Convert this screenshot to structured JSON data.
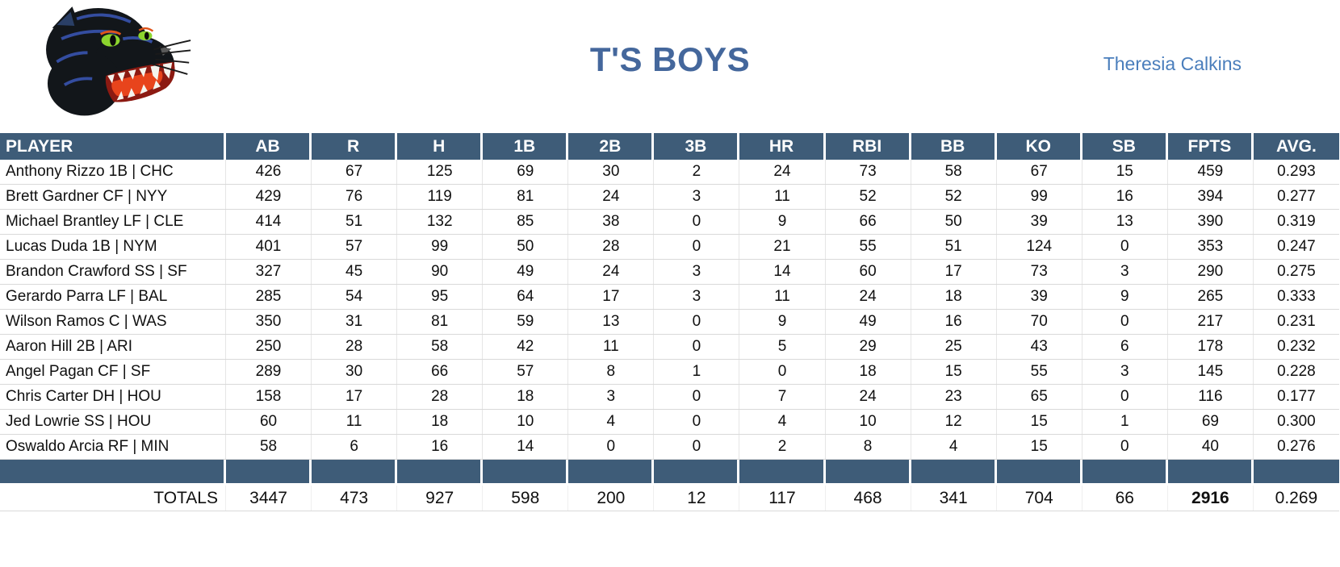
{
  "header": {
    "title": "T'S BOYS",
    "owner": "Theresia Calkins"
  },
  "colors": {
    "header_fill": "#3E5C78",
    "title_text": "#44679C",
    "owner_text": "#4A7EBC",
    "grid_line": "#D9D9D9"
  },
  "logo": {
    "name": "panther-head-logo"
  },
  "table": {
    "columns": [
      "PLAYER",
      "AB",
      "R",
      "H",
      "1B",
      "2B",
      "3B",
      "HR",
      "RBI",
      "BB",
      "KO",
      "SB",
      "FPTS",
      "AVG."
    ],
    "rows": [
      {
        "player": "Anthony Rizzo 1B | CHC",
        "stats": [
          426,
          67,
          125,
          69,
          30,
          2,
          24,
          73,
          58,
          67,
          15,
          459,
          "0.293"
        ]
      },
      {
        "player": "Brett Gardner CF | NYY",
        "stats": [
          429,
          76,
          119,
          81,
          24,
          3,
          11,
          52,
          52,
          99,
          16,
          394,
          "0.277"
        ]
      },
      {
        "player": "Michael Brantley LF | CLE",
        "stats": [
          414,
          51,
          132,
          85,
          38,
          0,
          9,
          66,
          50,
          39,
          13,
          390,
          "0.319"
        ]
      },
      {
        "player": "Lucas Duda 1B | NYM",
        "stats": [
          401,
          57,
          99,
          50,
          28,
          0,
          21,
          55,
          51,
          124,
          0,
          353,
          "0.247"
        ]
      },
      {
        "player": "Brandon Crawford SS | SF",
        "stats": [
          327,
          45,
          90,
          49,
          24,
          3,
          14,
          60,
          17,
          73,
          3,
          290,
          "0.275"
        ]
      },
      {
        "player": "Gerardo Parra LF | BAL",
        "stats": [
          285,
          54,
          95,
          64,
          17,
          3,
          11,
          24,
          18,
          39,
          9,
          265,
          "0.333"
        ]
      },
      {
        "player": "Wilson Ramos C | WAS",
        "stats": [
          350,
          31,
          81,
          59,
          13,
          0,
          9,
          49,
          16,
          70,
          0,
          217,
          "0.231"
        ]
      },
      {
        "player": "Aaron Hill 2B | ARI",
        "stats": [
          250,
          28,
          58,
          42,
          11,
          0,
          5,
          29,
          25,
          43,
          6,
          178,
          "0.232"
        ]
      },
      {
        "player": "Angel Pagan CF | SF",
        "stats": [
          289,
          30,
          66,
          57,
          8,
          1,
          0,
          18,
          15,
          55,
          3,
          145,
          "0.228"
        ]
      },
      {
        "player": "Chris Carter DH | HOU",
        "stats": [
          158,
          17,
          28,
          18,
          3,
          0,
          7,
          24,
          23,
          65,
          0,
          116,
          "0.177"
        ]
      },
      {
        "player": "Jed Lowrie SS | HOU",
        "stats": [
          60,
          11,
          18,
          10,
          4,
          0,
          4,
          10,
          12,
          15,
          1,
          69,
          "0.300"
        ]
      },
      {
        "player": "Oswaldo Arcia RF | MIN",
        "stats": [
          58,
          6,
          16,
          14,
          0,
          0,
          2,
          8,
          4,
          15,
          0,
          40,
          "0.276"
        ]
      }
    ],
    "totals": {
      "label": "TOTALS",
      "stats": [
        3447,
        473,
        927,
        598,
        200,
        12,
        117,
        468,
        341,
        704,
        66,
        2916,
        "0.269"
      ]
    }
  }
}
